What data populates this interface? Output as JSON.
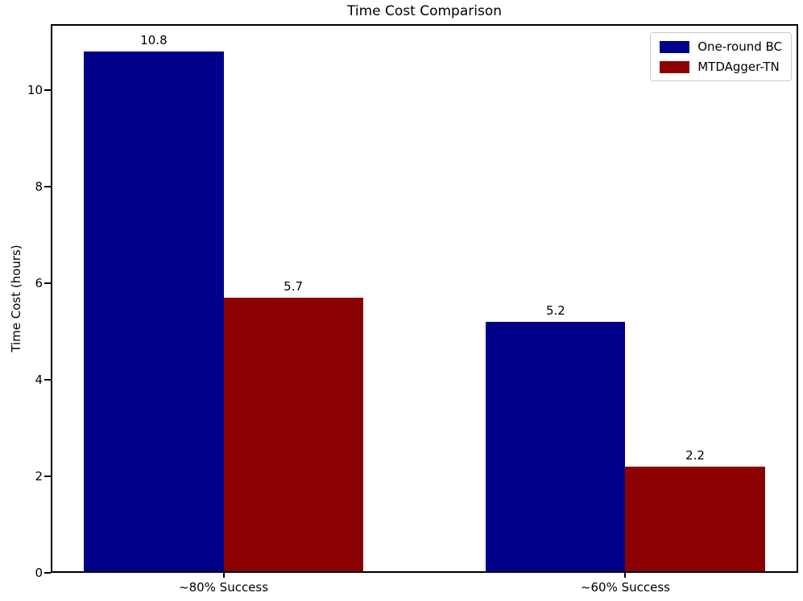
{
  "chart_data": {
    "type": "bar",
    "title": "Time Cost Comparison",
    "xlabel": "",
    "ylabel": "Time Cost (hours)",
    "categories": [
      "~80% Success",
      "~60% Success"
    ],
    "series": [
      {
        "name": "One-round BC",
        "color": "#00008b",
        "values": [
          10.8,
          5.2
        ],
        "labels": [
          "10.8",
          "5.2"
        ]
      },
      {
        "name": "MTDAgger-TN",
        "color": "#8b0000",
        "values": [
          5.7,
          2.2
        ],
        "labels": [
          "5.7",
          "2.2"
        ]
      }
    ],
    "bar_width": 0.347,
    "yticks": [
      0,
      2,
      4,
      6,
      8,
      10
    ],
    "ylim": [
      0,
      11.37
    ],
    "xlim": [
      -0.43,
      1.43
    ],
    "grid": false,
    "legend_position": "upper right"
  },
  "colors": {
    "background": "#ffffff",
    "spine": "#000000",
    "text": "#000000",
    "legend_border": "#cccccc"
  }
}
